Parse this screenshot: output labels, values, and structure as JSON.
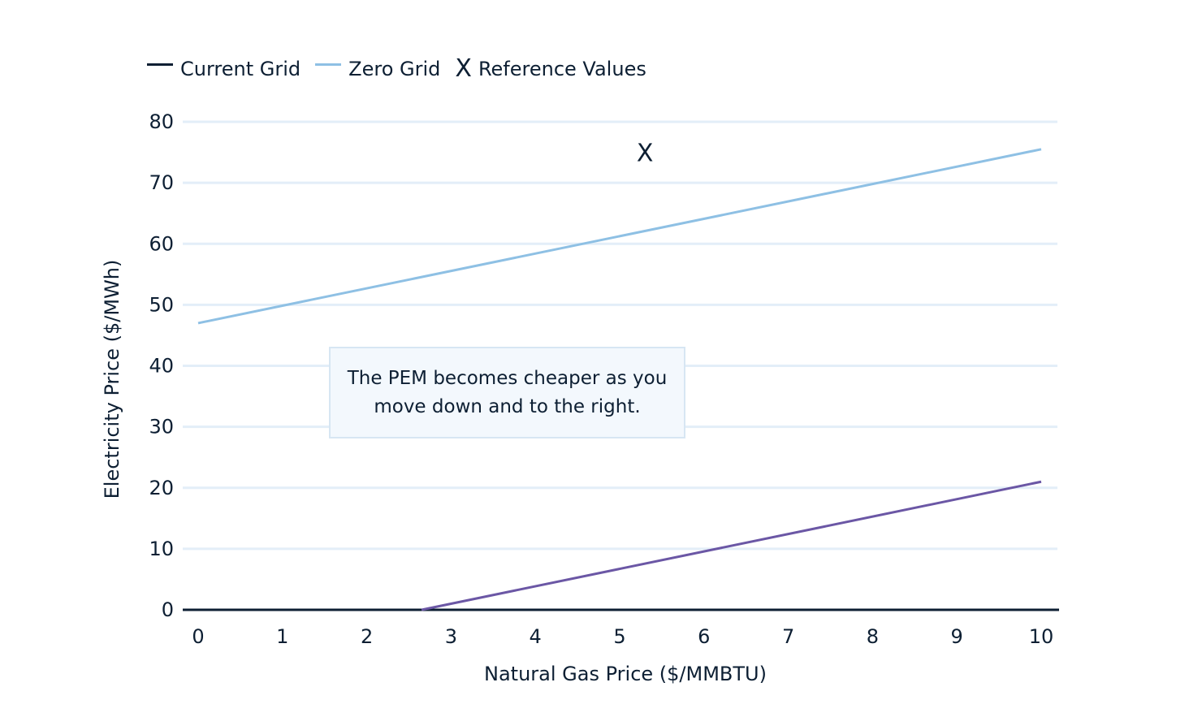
{
  "chart_data": {
    "type": "line",
    "title": "",
    "xlabel": "Natural Gas Price ($/MMBTU)",
    "ylabel": "Electricity Price ($/MWh)",
    "xlim": [
      0,
      10
    ],
    "ylim": [
      0,
      80
    ],
    "x_ticks": [
      0,
      1,
      2,
      3,
      4,
      5,
      6,
      7,
      8,
      9,
      10
    ],
    "y_ticks": [
      0,
      10,
      20,
      30,
      40,
      50,
      60,
      70,
      80
    ],
    "grid": true,
    "legend_position": "top-left",
    "legend": {
      "current_grid": "Current Grid",
      "zero_grid": "Zero Grid",
      "reference_values": "Reference Values",
      "reference_marker": "X"
    },
    "series": [
      {
        "name": "Current Grid",
        "color": "#6b57a5",
        "x": [
          2.65,
          10
        ],
        "y": [
          0,
          21
        ]
      },
      {
        "name": "Zero Grid",
        "color": "#8ec0e4",
        "x": [
          0,
          10
        ],
        "y": [
          47,
          75.5
        ]
      }
    ],
    "reference_points": [
      {
        "x": 5.3,
        "y": 75,
        "marker": "X"
      }
    ],
    "annotation": "The PEM becomes cheaper as you move down and to the right.",
    "colors": {
      "grid": "#e3eef8",
      "axis": "#0d1f33",
      "text": "#0d1f33",
      "legend_current_grid_swatch": "#0d1f33",
      "legend_zero_grid_swatch": "#8ec0e4"
    }
  }
}
